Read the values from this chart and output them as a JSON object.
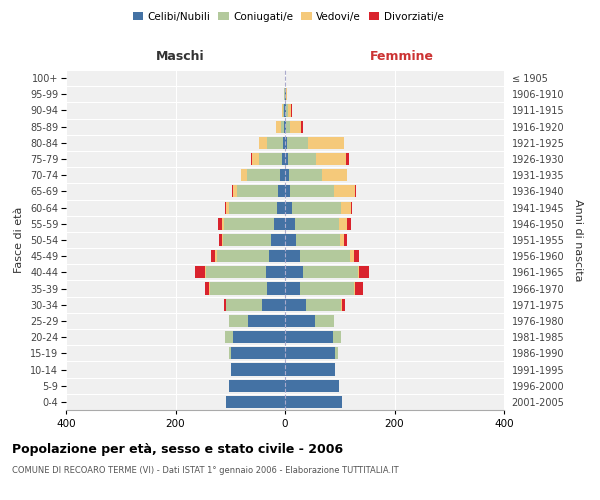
{
  "age_groups": [
    "0-4",
    "5-9",
    "10-14",
    "15-19",
    "20-24",
    "25-29",
    "30-34",
    "35-39",
    "40-44",
    "45-49",
    "50-54",
    "55-59",
    "60-64",
    "65-69",
    "70-74",
    "75-79",
    "80-84",
    "85-89",
    "90-94",
    "95-99",
    "100+"
  ],
  "birth_years": [
    "2001-2005",
    "1996-2000",
    "1991-1995",
    "1986-1990",
    "1981-1985",
    "1976-1980",
    "1971-1975",
    "1966-1970",
    "1961-1965",
    "1956-1960",
    "1951-1955",
    "1946-1950",
    "1941-1945",
    "1936-1940",
    "1931-1935",
    "1926-1930",
    "1921-1925",
    "1916-1920",
    "1911-1915",
    "1906-1910",
    "≤ 1905"
  ],
  "colors": {
    "celibi": "#4472a4",
    "coniugati": "#b3c99c",
    "vedovi": "#f5c97a",
    "divorziati": "#d9232d"
  },
  "maschi": {
    "celibi": [
      108,
      102,
      98,
      98,
      95,
      68,
      42,
      32,
      35,
      30,
      25,
      20,
      15,
      12,
      10,
      6,
      4,
      2,
      1,
      0,
      0
    ],
    "coniugati": [
      0,
      0,
      0,
      5,
      15,
      35,
      65,
      105,
      110,
      95,
      88,
      92,
      88,
      75,
      60,
      42,
      28,
      6,
      3,
      1,
      0
    ],
    "vedovi": [
      0,
      0,
      0,
      0,
      0,
      0,
      0,
      1,
      2,
      2,
      2,
      3,
      5,
      8,
      10,
      12,
      15,
      8,
      2,
      0,
      0
    ],
    "divorziati": [
      0,
      0,
      0,
      0,
      0,
      0,
      5,
      8,
      18,
      8,
      5,
      8,
      2,
      2,
      0,
      2,
      0,
      0,
      0,
      0,
      0
    ]
  },
  "femmine": {
    "celibi": [
      105,
      98,
      92,
      92,
      88,
      55,
      38,
      28,
      32,
      28,
      20,
      18,
      12,
      10,
      8,
      5,
      4,
      2,
      1,
      1,
      0
    ],
    "coniugati": [
      0,
      0,
      0,
      5,
      15,
      35,
      65,
      98,
      102,
      90,
      80,
      80,
      90,
      80,
      60,
      52,
      38,
      8,
      4,
      1,
      0
    ],
    "vedovi": [
      0,
      0,
      0,
      0,
      0,
      0,
      2,
      2,
      2,
      8,
      8,
      15,
      18,
      38,
      45,
      55,
      65,
      20,
      6,
      2,
      0
    ],
    "divorziati": [
      0,
      0,
      0,
      0,
      0,
      0,
      5,
      15,
      18,
      10,
      5,
      8,
      2,
      2,
      0,
      5,
      0,
      2,
      2,
      0,
      0
    ]
  },
  "xlim": 400,
  "xticks": [
    -400,
    -200,
    0,
    200,
    400
  ],
  "title": "Popolazione per età, sesso e stato civile - 2006",
  "subtitle": "COMUNE DI RECOARO TERME (VI) - Dati ISTAT 1° gennaio 2006 - Elaborazione TUTTITALIA.IT",
  "ylabel_left": "Fasce di età",
  "ylabel_right": "Anni di nascita",
  "xlabel_left": "Maschi",
  "xlabel_right": "Femmine",
  "legend_labels": [
    "Celibi/Nubili",
    "Coniugati/e",
    "Vedovi/e",
    "Divorziati/e"
  ],
  "background_color": "#ffffff",
  "plot_bg_color": "#f0f0f0",
  "bar_height": 0.75
}
